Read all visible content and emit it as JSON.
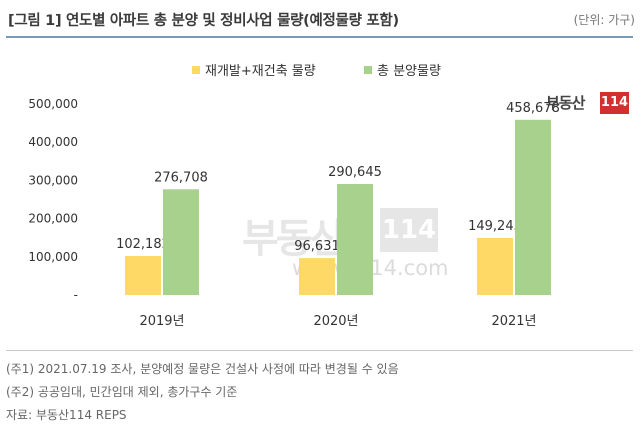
{
  "header": {
    "title": "[그림 1] 연도별 아파트 총 분양 및 정비사업 물량(예정물량 포함)",
    "unit": "(단위: 가구)"
  },
  "brand": {
    "word": "부동산",
    "number": "114"
  },
  "watermark": {
    "url": "www.r114.com"
  },
  "notes": [
    "(주1) 2021.07.19 조사, 분양예정 물량은 건설사 사정에 따라 변경될 수 있음",
    "(주2) 공공임대, 민간임대 제외, 총가구수 기준",
    "자료: 부동산114 REPS"
  ],
  "colors": {
    "redevelop": "#ffd966",
    "total": "#a9d18e",
    "rule": "#7a9ab8",
    "logo_red": "#d13030"
  },
  "chart_data": {
    "type": "bar",
    "categories": [
      "2019년",
      "2020년",
      "2021년"
    ],
    "series": [
      {
        "name": "재개발+재건축 물량",
        "values": [
          102182,
          96631,
          149243
        ],
        "labels": [
          "102,182",
          "96,631",
          "149,243"
        ],
        "color": "#ffd966"
      },
      {
        "name": "총 분양물량",
        "values": [
          276708,
          290645,
          458678
        ],
        "labels": [
          "276,708",
          "290,645",
          "458,678"
        ],
        "color": "#a9d18e"
      }
    ],
    "ylim": [
      0,
      500000
    ],
    "yticks": [
      0,
      100000,
      200000,
      300000,
      400000,
      500000
    ],
    "ytick_labels": [
      "-",
      "100,000",
      "200,000",
      "300,000",
      "400,000",
      "500,000"
    ],
    "legend": "top-center",
    "grid": false
  }
}
